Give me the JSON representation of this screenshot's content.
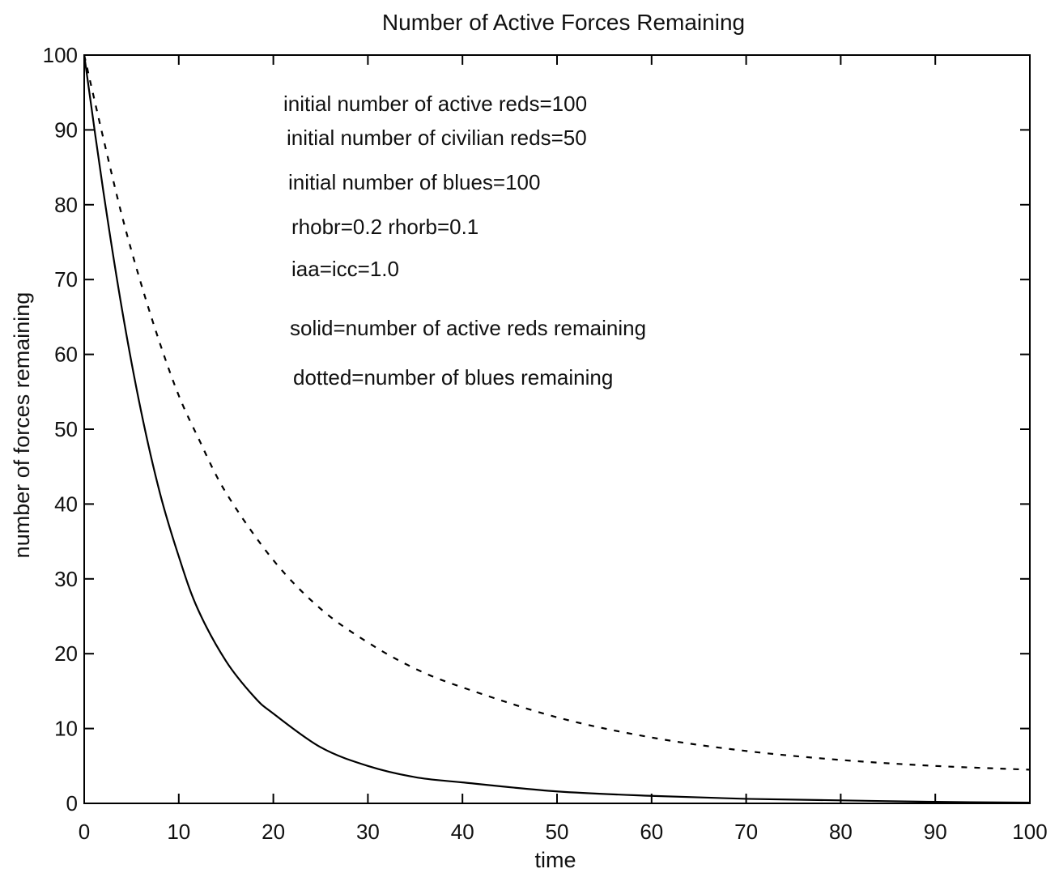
{
  "chart_data": {
    "type": "line",
    "title": "Number of Active Forces Remaining",
    "xlabel": "time",
    "ylabel": "number of forces remaining",
    "xlim": [
      0,
      100
    ],
    "ylim": [
      0,
      100
    ],
    "grid": false,
    "xticks": [
      0,
      10,
      20,
      30,
      40,
      50,
      60,
      70,
      80,
      90,
      100
    ],
    "yticks": [
      0,
      10,
      20,
      30,
      40,
      50,
      60,
      70,
      80,
      90,
      100
    ],
    "annotations": [
      "initial number of active reds=100",
      "initial number of civilian reds=50",
      "initial number of blues=100",
      "rhobr=0.2 rhorb=0.1",
      "iaa=icc=1.0",
      "solid=number of active reds remaining",
      "dotted=number of blues remaining"
    ],
    "series": [
      {
        "style": "solid",
        "color": "#000000",
        "x": [
          0,
          2,
          4,
          6,
          8,
          10,
          12,
          15,
          18,
          20,
          25,
          30,
          35,
          40,
          50,
          60,
          70,
          80,
          90,
          100
        ],
        "y": [
          100,
          82,
          66,
          52.5,
          41.5,
          33,
          26,
          19,
          14.2,
          12,
          7.5,
          5,
          3.5,
          2.8,
          1.6,
          1.0,
          0.6,
          0.4,
          0.2,
          0.1
        ]
      },
      {
        "style": "dotted",
        "color": "#000000",
        "x": [
          0,
          2,
          4,
          6,
          8,
          10,
          12,
          15,
          20,
          25,
          30,
          35,
          40,
          50,
          60,
          70,
          80,
          90,
          100
        ],
        "y": [
          100,
          89,
          78.5,
          69.5,
          61.5,
          54.5,
          49,
          41.5,
          32.5,
          26,
          21.5,
          18,
          15.5,
          11.5,
          8.8,
          7.0,
          5.8,
          5.0,
          4.5
        ]
      }
    ]
  }
}
